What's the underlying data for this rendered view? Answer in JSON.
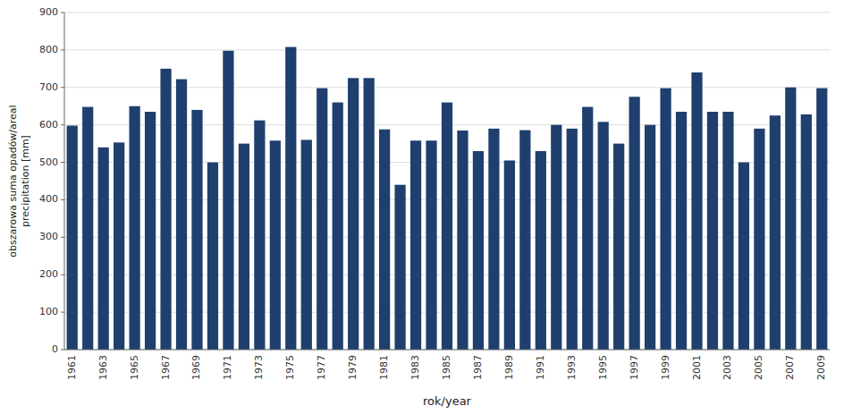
{
  "chart_data": {
    "type": "bar",
    "categories": [
      "1961",
      null,
      "1963",
      null,
      "1965",
      null,
      "1967",
      null,
      "1969",
      null,
      "1971",
      null,
      "1973",
      null,
      "1975",
      null,
      "1977",
      null,
      "1979",
      null,
      "1981",
      null,
      "1983",
      null,
      "1985",
      null,
      "1987",
      null,
      "1989",
      null,
      "1991",
      null,
      "1993",
      null,
      "1995",
      null,
      "1997",
      null,
      "1999",
      null,
      "2001",
      null,
      "2003",
      null,
      "2005",
      null,
      "2007",
      null,
      "2009"
    ],
    "values": [
      598,
      648,
      540,
      553,
      650,
      635,
      750,
      722,
      640,
      500,
      798,
      550,
      612,
      558,
      808,
      560,
      698,
      660,
      725,
      725,
      588,
      440,
      558,
      558,
      660,
      585,
      530,
      590,
      505,
      586,
      530,
      600,
      590,
      648,
      608,
      550,
      675,
      600,
      698,
      635,
      740,
      635,
      635,
      500,
      590,
      625,
      700,
      628,
      698
    ],
    "color": "#1F3F6E",
    "x_label": "rok/year",
    "y_label": "obszarowa suma opadów/areal\nprecipitation [mm]",
    "ylim": [
      0,
      900
    ],
    "yticks": [
      0,
      100,
      200,
      300,
      400,
      500,
      600,
      700,
      800,
      900
    ],
    "grid": true
  }
}
